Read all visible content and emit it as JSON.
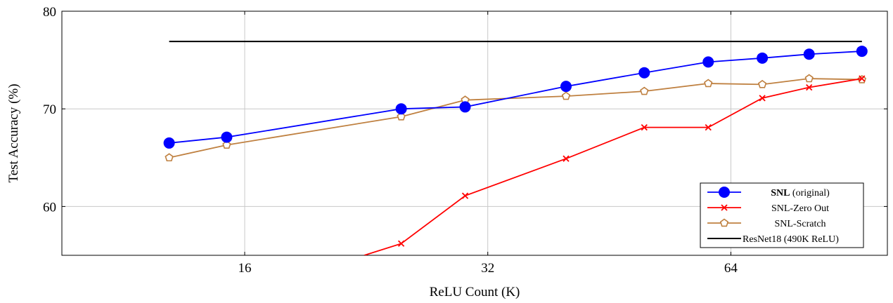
{
  "chart_data": {
    "type": "line",
    "xlabel": "ReLU Count (K)",
    "ylabel": "Test Accuracy (%)",
    "x_scale": "log2",
    "xlim": [
      9.5,
      100
    ],
    "ylim": [
      55,
      80
    ],
    "x_ticks": [
      16,
      32,
      64
    ],
    "x_tick_labels": [
      "16",
      "32",
      "64"
    ],
    "y_ticks": [
      60,
      70,
      80
    ],
    "y_tick_labels": [
      "60",
      "70",
      "80"
    ],
    "grid": true,
    "legend_position": "bottom-right",
    "series": [
      {
        "name": "SNL",
        "name_suffix": "(original)",
        "color": "#0000ff",
        "marker": "circle",
        "x": [
          12.9,
          15.2,
          25.0,
          30.0,
          40.0,
          50.0,
          60.0,
          70.0,
          80.0,
          93.0
        ],
        "y": [
          66.5,
          67.1,
          70.0,
          70.2,
          72.3,
          73.7,
          74.8,
          75.2,
          75.6,
          75.9
        ]
      },
      {
        "name": "SNL-Zero Out",
        "color": "#ff0000",
        "marker": "x",
        "x": [
          22.5,
          25.0,
          30.0,
          40.0,
          50.0,
          60.0,
          70.0,
          80.0,
          93.0
        ],
        "y": [
          55.0,
          56.2,
          61.1,
          64.9,
          68.1,
          68.1,
          71.1,
          72.2,
          73.1
        ]
      },
      {
        "name": "SNL-Scratch",
        "color": "#bf8040",
        "marker": "pentagon",
        "x": [
          12.9,
          15.2,
          25.0,
          30.0,
          40.0,
          50.0,
          60.0,
          70.0,
          80.0,
          93.0
        ],
        "y": [
          65.0,
          66.3,
          69.2,
          70.9,
          71.3,
          71.8,
          72.6,
          72.5,
          73.1,
          73.0
        ]
      },
      {
        "name": "ResNet18 (490K ReLU)",
        "color": "#000000",
        "marker": "none",
        "x": [
          12.9,
          93.0
        ],
        "y": [
          76.9,
          76.9
        ]
      }
    ]
  }
}
